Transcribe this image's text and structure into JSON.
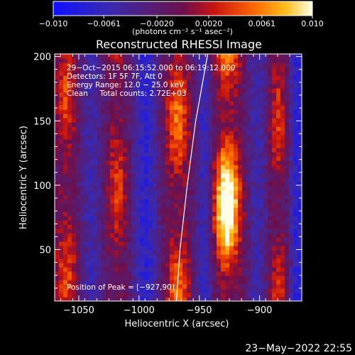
{
  "chart_data": {
    "type": "heatmap",
    "title": "Reconstructed RHESSI Image",
    "xlabel": "Heliocentric X (arcsec)",
    "ylabel": "Heliocentric Y (arcsec)",
    "xlim": [
      -1070,
      -865
    ],
    "ylim": [
      10,
      202
    ],
    "x_ticks": [
      -1050,
      -1000,
      -950,
      -900
    ],
    "x_tick_labels": [
      "−1050",
      "−1000",
      "−950",
      "−900"
    ],
    "y_ticks": [
      50,
      100,
      150,
      200
    ],
    "y_tick_labels": [
      "50",
      "100",
      "150",
      "200"
    ],
    "colorbar": {
      "range": [
        -0.01,
        0.01
      ],
      "ticks": [
        -0.01,
        -0.0061,
        -0.002,
        0.002,
        0.0061,
        0.01
      ],
      "tick_labels": [
        "−0.010",
        "−0.0061",
        "−0.0020",
        "0.0020",
        "0.0061",
        "0.010"
      ],
      "unit_label": "(photons cm⁻² s⁻¹ asec⁻²)"
    },
    "annotations": {
      "time_range": "29−Oct−2015 06:15:52.000 to 06:19:12.000",
      "detectors": "Detectors: 1F 5F 7F, Att 0",
      "energy_range": "Energy Range: 12.0 − 25.0 keV",
      "method_counts": "Clean     Total counts: 2.72E+03",
      "peak_position": "Position of Peak = [−927,90]"
    },
    "peak": [
      -927,
      90
    ],
    "ridges": [
      {
        "x": -1060,
        "amplitude": 0.55,
        "width": 9
      },
      {
        "x": -1040,
        "amplitude": -0.45,
        "width": 10
      },
      {
        "x": -1018,
        "amplitude": 0.55,
        "width": 8
      },
      {
        "x": -995,
        "amplitude": -0.65,
        "width": 11
      },
      {
        "x": -968,
        "amplitude": 0.75,
        "width": 9
      },
      {
        "x": -946,
        "amplitude": -0.55,
        "width": 7
      },
      {
        "x": -927,
        "amplitude": 1.0,
        "width": 11
      },
      {
        "x": -902,
        "amplitude": -0.45,
        "width": 9
      },
      {
        "x": -885,
        "amplitude": 0.5,
        "width": 7
      },
      {
        "x": -868,
        "amplitude": -0.7,
        "width": 7
      }
    ],
    "limb_curve": [
      [
        -943,
        202
      ],
      [
        -953,
        150
      ],
      [
        -960,
        100
      ],
      [
        -966,
        50
      ],
      [
        -969,
        10
      ]
    ],
    "grid": false
  },
  "footer": {
    "date": "23−May−2022 22:55"
  }
}
